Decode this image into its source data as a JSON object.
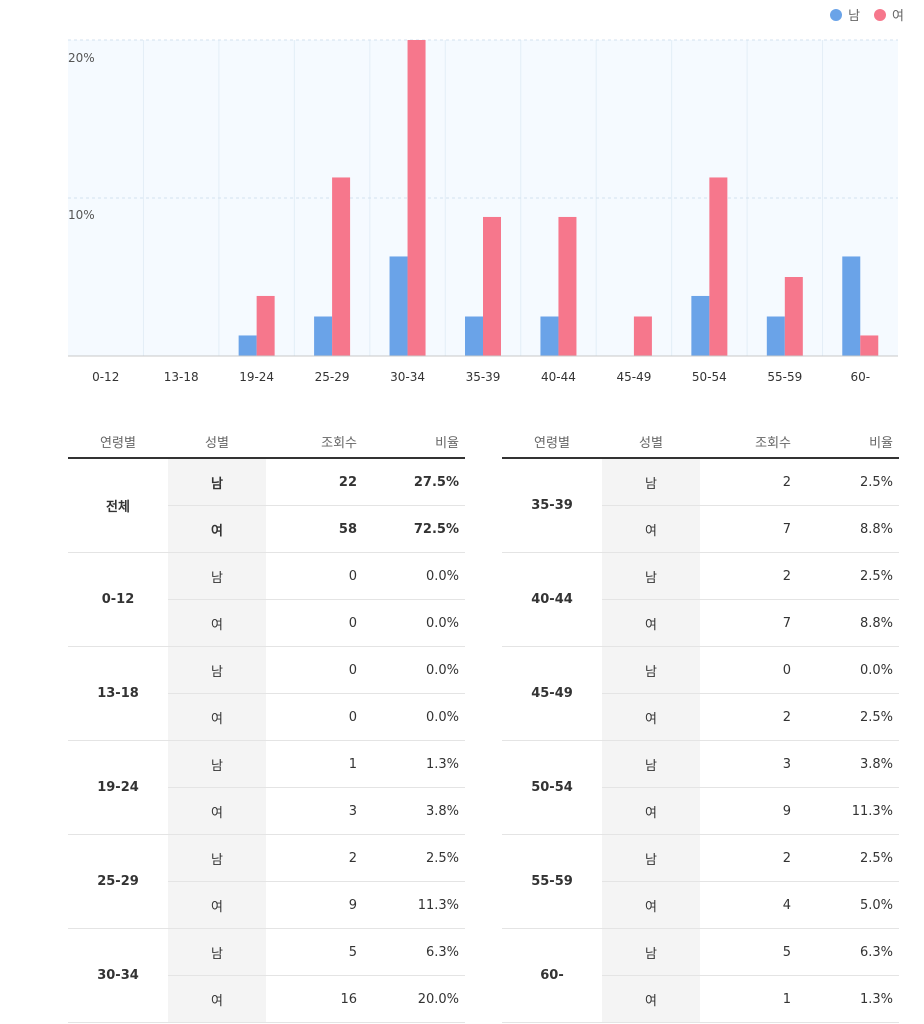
{
  "chart_data": {
    "type": "bar",
    "categories": [
      "0-12",
      "13-18",
      "19-24",
      "25-29",
      "30-34",
      "35-39",
      "40-44",
      "45-49",
      "50-54",
      "55-59",
      "60-"
    ],
    "series": [
      {
        "name": "남",
        "color": "#6aa3e8",
        "values": [
          0,
          0,
          1.3,
          2.5,
          6.3,
          2.5,
          2.5,
          0,
          3.8,
          2.5,
          6.3
        ]
      },
      {
        "name": "여",
        "color": "#f6778c",
        "values": [
          0,
          0,
          3.8,
          11.3,
          20.0,
          8.8,
          8.8,
          2.5,
          11.3,
          5.0,
          1.3
        ]
      }
    ],
    "yticks": [
      "20%",
      "10%"
    ],
    "ylim": [
      0,
      20
    ]
  },
  "table": {
    "headers": {
      "age": "연령별",
      "gender": "성별",
      "views": "조회수",
      "ratio": "비율"
    },
    "left": [
      {
        "age": "전체",
        "rows": [
          {
            "g": "남",
            "v": "22",
            "r": "27.5%"
          },
          {
            "g": "여",
            "v": "58",
            "r": "72.5%"
          }
        ]
      },
      {
        "age": "0-12",
        "rows": [
          {
            "g": "남",
            "v": "0",
            "r": "0.0%"
          },
          {
            "g": "여",
            "v": "0",
            "r": "0.0%"
          }
        ]
      },
      {
        "age": "13-18",
        "rows": [
          {
            "g": "남",
            "v": "0",
            "r": "0.0%"
          },
          {
            "g": "여",
            "v": "0",
            "r": "0.0%"
          }
        ]
      },
      {
        "age": "19-24",
        "rows": [
          {
            "g": "남",
            "v": "1",
            "r": "1.3%"
          },
          {
            "g": "여",
            "v": "3",
            "r": "3.8%"
          }
        ]
      },
      {
        "age": "25-29",
        "rows": [
          {
            "g": "남",
            "v": "2",
            "r": "2.5%"
          },
          {
            "g": "여",
            "v": "9",
            "r": "11.3%"
          }
        ]
      },
      {
        "age": "30-34",
        "rows": [
          {
            "g": "남",
            "v": "5",
            "r": "6.3%"
          },
          {
            "g": "여",
            "v": "16",
            "r": "20.0%"
          }
        ]
      }
    ],
    "right": [
      {
        "age": "35-39",
        "rows": [
          {
            "g": "남",
            "v": "2",
            "r": "2.5%"
          },
          {
            "g": "여",
            "v": "7",
            "r": "8.8%"
          }
        ]
      },
      {
        "age": "40-44",
        "rows": [
          {
            "g": "남",
            "v": "2",
            "r": "2.5%"
          },
          {
            "g": "여",
            "v": "7",
            "r": "8.8%"
          }
        ]
      },
      {
        "age": "45-49",
        "rows": [
          {
            "g": "남",
            "v": "0",
            "r": "0.0%"
          },
          {
            "g": "여",
            "v": "2",
            "r": "2.5%"
          }
        ]
      },
      {
        "age": "50-54",
        "rows": [
          {
            "g": "남",
            "v": "3",
            "r": "3.8%"
          },
          {
            "g": "여",
            "v": "9",
            "r": "11.3%"
          }
        ]
      },
      {
        "age": "55-59",
        "rows": [
          {
            "g": "남",
            "v": "2",
            "r": "2.5%"
          },
          {
            "g": "여",
            "v": "4",
            "r": "5.0%"
          }
        ]
      },
      {
        "age": "60-",
        "rows": [
          {
            "g": "남",
            "v": "5",
            "r": "6.3%"
          },
          {
            "g": "여",
            "v": "1",
            "r": "1.3%"
          }
        ]
      }
    ]
  }
}
